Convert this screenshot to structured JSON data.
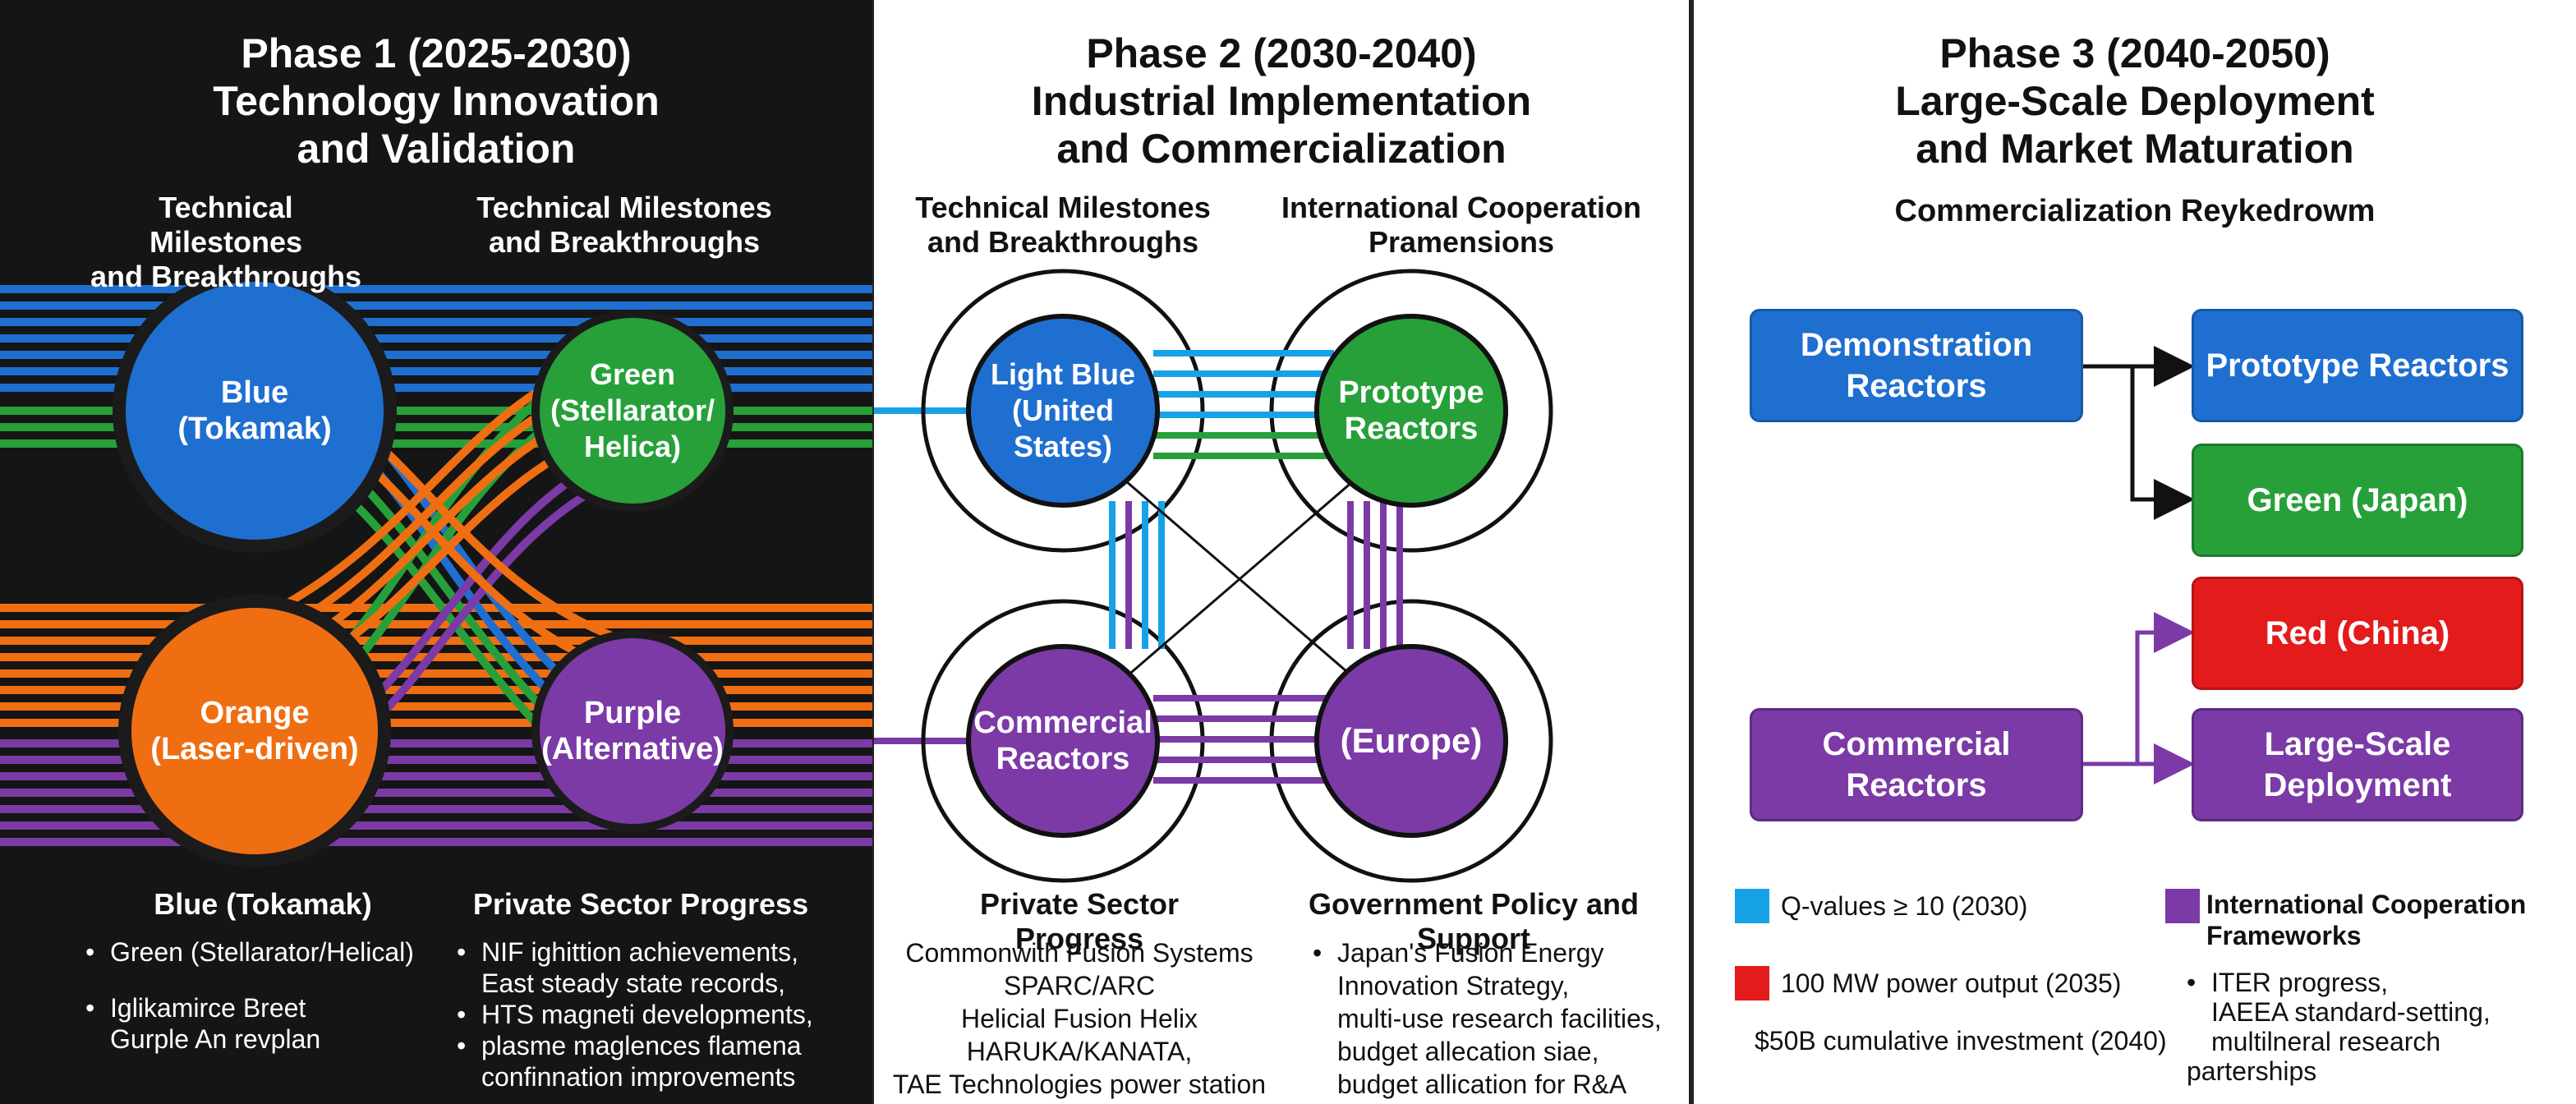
{
  "phase1": {
    "title_l1": "Phase 1 (2025-2030)",
    "title_l2": "Technology Innovation",
    "title_l3": "and Validation",
    "sub_left_l1": "Technical Milestones",
    "sub_left_l2": "and Breakthroughs",
    "sub_right_l1": "Technical Milestones",
    "sub_right_l2": "and Breakthroughs",
    "node_blue_l1": "Blue",
    "node_blue_l2": "(Tokamak)",
    "node_green_l1": "Green",
    "node_green_l2": "(Stellarator/",
    "node_green_l3": "Helica)",
    "node_orange_l1": "Orange",
    "node_orange_l2": "(Laser-driven)",
    "node_purple_l1": "Purple",
    "node_purple_l2": "(Alternative)",
    "bottom_left_heading": "Blue (Tokamak)",
    "bottom_left_items": [
      "Green (Stellarator/Helical)",
      "Iglikamirce Breet",
      "Gurple An revplan"
    ],
    "bottom_right_heading": "Private Sector Progress",
    "bottom_right_items": [
      "NIF ighittion achievements,",
      "East steady state records,",
      "HTS magneti developments,",
      "plasme maglences  flamena",
      "confinnation improvements"
    ]
  },
  "phase2": {
    "title_l1": "Phase 2 (2030-2040)",
    "title_l2": "Industrial Implementation",
    "title_l3": "and Commercialization",
    "sub_left_l1": "Technical Milestones",
    "sub_left_l2": "and Breakthroughs",
    "sub_right_l1": "International Cooperation",
    "sub_right_l2": "Pramensions",
    "node_tl_l1": "Light Blue",
    "node_tl_l2": "(United States)",
    "node_tr_l1": "Prototype",
    "node_tr_l2": "Reactors",
    "node_bl_l1": "Commercial",
    "node_bl_l2": "Reactors",
    "node_br_l1": "(Europe)",
    "bottom_left_heading": "Private Sector Progress",
    "bottom_left_items": [
      "Commonwith Fusion Systems",
      "SPARC/ARC",
      "Helicial Fusion Helix HARUKA/KANATA,",
      "TAE Technologies power station plans,"
    ],
    "bottom_right_heading": "Government Policy and Support",
    "bottom_right_items": [
      "Japan's Fusion Energy",
      "Innovation Strategy,",
      "multi-use research facilities,",
      "budget allecation siae,",
      "budget allication for R&A"
    ]
  },
  "phase3": {
    "title_l1": "Phase 3 (2040-2050)",
    "title_l2": "Large-Scale Deployment",
    "title_l3": "and Market Maturation",
    "subtitle": "Commercialization Reykedrowm",
    "box_demo": "Demonstration Reactors",
    "box_proto": "Prototype Reactors",
    "box_green": "Green (Japan)",
    "box_red": "Red (China)",
    "box_commercial": "Commercial Reactors",
    "box_largescale": "Large-Scale Deployment",
    "legend_q": "Q-values ≥ 10 (2030)",
    "legend_power": "100 MW power output (2035)",
    "legend_invest": "$50B cumulative investment (2040)",
    "legend_intl_l1": "International Cooperation",
    "legend_intl_l2": "Frameworks",
    "legend_intl_items": [
      "ITER progress,",
      "IAEEA standard-setting,",
      "multilneral research parterships"
    ]
  },
  "colors": {
    "blue": "#1f6fd0",
    "light_blue": "#17a2e8",
    "green": "#27a03a",
    "orange": "#f06e12",
    "purple": "#7b3aa6",
    "red": "#e31b1b",
    "dark_bg": "#151515"
  }
}
